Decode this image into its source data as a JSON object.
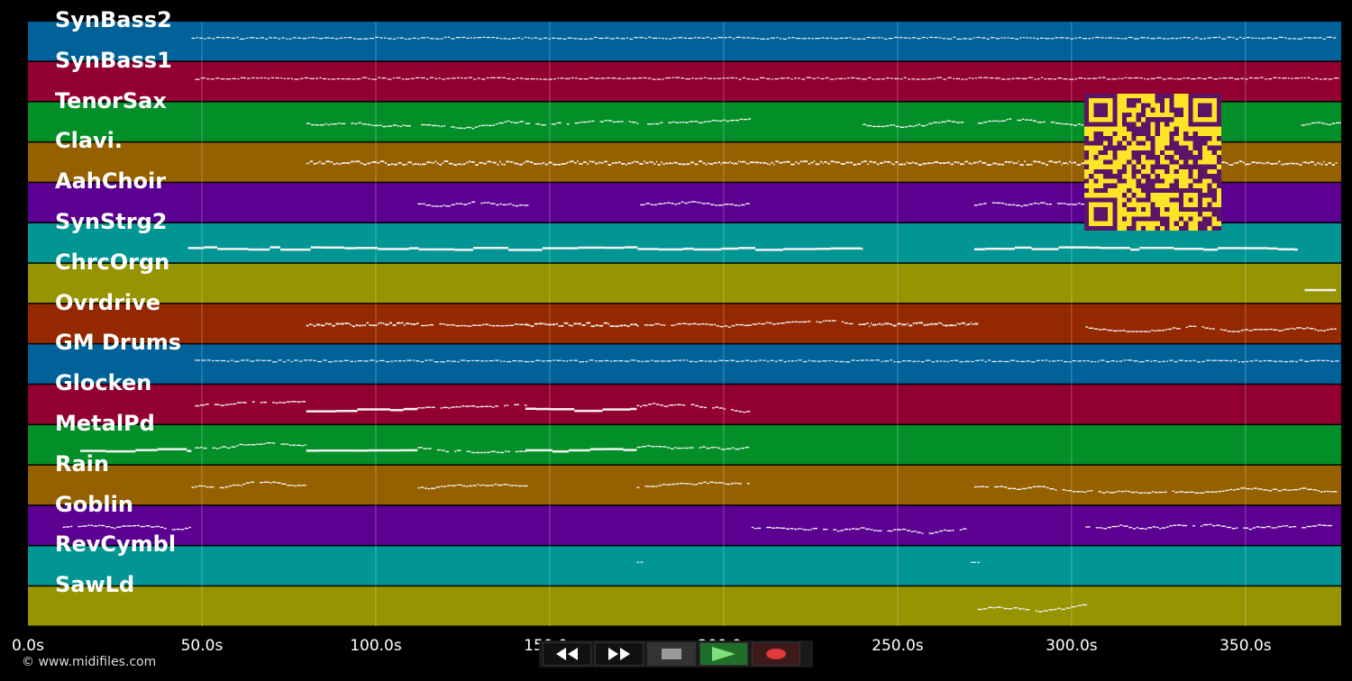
{
  "tracks": [
    {
      "name": "SynBass2",
      "color": "#01629a"
    },
    {
      "name": "SynBass1",
      "color": "#920032"
    },
    {
      "name": "TenorSax",
      "color": "#028f28"
    },
    {
      "name": "Clavi.",
      "color": "#946000"
    },
    {
      "name": "AahChoir",
      "color": "#5c0092"
    },
    {
      "name": "SynStrg2",
      "color": "#019693"
    },
    {
      "name": "ChrcOrgn",
      "color": "#969400"
    },
    {
      "name": "Ovrdrive",
      "color": "#942800"
    },
    {
      "name": "GM Drums",
      "color": "#01629a"
    },
    {
      "name": "Glocken",
      "color": "#920032"
    },
    {
      "name": "MetalPd",
      "color": "#028f28"
    },
    {
      "name": "Rain",
      "color": "#946000"
    },
    {
      "name": "Goblin",
      "color": "#5c0092"
    },
    {
      "name": "RevCymbl",
      "color": "#019693"
    },
    {
      "name": "SawLd",
      "color": "#969400"
    }
  ],
  "timeline": {
    "max_seconds": 377.5,
    "ticks": [
      {
        "value": 0,
        "label": "0.0s"
      },
      {
        "value": 50,
        "label": "50.0s"
      },
      {
        "value": 100,
        "label": "100.0s"
      },
      {
        "value": 150,
        "label": "150.0s"
      },
      {
        "value": 200,
        "label": "200.0s"
      },
      {
        "value": 250,
        "label": "250.0s"
      },
      {
        "value": 300,
        "label": "300.0s"
      },
      {
        "value": 350,
        "label": "350.0s"
      }
    ]
  },
  "notes": [
    {
      "track": 0,
      "segments": [
        [
          47,
          376,
          "dash"
        ]
      ]
    },
    {
      "track": 1,
      "segments": [
        [
          48,
          376,
          "dash"
        ]
      ]
    },
    {
      "track": 2,
      "segments": [
        [
          80,
          110,
          "wave"
        ],
        [
          113,
          142,
          "wave"
        ],
        [
          143,
          175,
          "wave"
        ],
        [
          178,
          207,
          "wave"
        ],
        [
          240,
          270,
          "wave"
        ],
        [
          273,
          303,
          "wave"
        ],
        [
          366,
          376,
          "wave"
        ]
      ]
    },
    {
      "track": 3,
      "segments": [
        [
          80,
          376,
          "dense"
        ]
      ]
    },
    {
      "track": 4,
      "segments": [
        [
          112,
          143,
          "wave"
        ],
        [
          176,
          207,
          "wave"
        ],
        [
          272,
          303,
          "wave"
        ]
      ]
    },
    {
      "track": 5,
      "segments": [
        [
          46,
          240,
          "bar"
        ],
        [
          272,
          365,
          "bar"
        ]
      ]
    },
    {
      "track": 6,
      "segments": [
        [
          367,
          376,
          "bar"
        ]
      ]
    },
    {
      "track": 7,
      "segments": [
        [
          80,
          112,
          "dense"
        ],
        [
          113,
          143,
          "wave"
        ],
        [
          143,
          175,
          "dense"
        ],
        [
          175,
          207,
          "wave"
        ],
        [
          207,
          240,
          "wave"
        ],
        [
          240,
          272,
          "dense"
        ],
        [
          304,
          376,
          "wave"
        ]
      ]
    },
    {
      "track": 8,
      "segments": [
        [
          48,
          376,
          "dash"
        ]
      ]
    },
    {
      "track": 9,
      "segments": [
        [
          48,
          80,
          "wave"
        ],
        [
          80,
          112,
          "bar"
        ],
        [
          112,
          143,
          "wave"
        ],
        [
          143,
          175,
          "bar"
        ],
        [
          175,
          207,
          "wave"
        ]
      ]
    },
    {
      "track": 10,
      "segments": [
        [
          15,
          47,
          "bar"
        ],
        [
          48,
          80,
          "wave"
        ],
        [
          80,
          112,
          "bar"
        ],
        [
          112,
          143,
          "wave"
        ],
        [
          143,
          175,
          "bar"
        ],
        [
          175,
          207,
          "wave"
        ]
      ]
    },
    {
      "track": 11,
      "segments": [
        [
          47,
          80,
          "wave"
        ],
        [
          112,
          143,
          "wave"
        ],
        [
          175,
          207,
          "wave"
        ],
        [
          272,
          376,
          "wave"
        ]
      ]
    },
    {
      "track": 12,
      "segments": [
        [
          10,
          47,
          "wave"
        ],
        [
          208,
          270,
          "wave"
        ],
        [
          304,
          375,
          "wave"
        ]
      ]
    },
    {
      "track": 13,
      "segments": [
        [
          175,
          177,
          "dash"
        ],
        [
          271,
          273,
          "dash"
        ]
      ]
    },
    {
      "track": 14,
      "segments": [
        [
          273,
          304,
          "wave"
        ]
      ]
    }
  ],
  "footer": {
    "copyright": "© www.midifiles.com"
  },
  "controls": [
    {
      "name": "rewind-button",
      "icon": "rewind-icon",
      "color": "#111111"
    },
    {
      "name": "fast-forward-button",
      "icon": "fast-forward-icon",
      "color": "#111111"
    },
    {
      "name": "stop-button",
      "icon": "stop-icon",
      "color": "#333333"
    },
    {
      "name": "play-button",
      "icon": "play-icon",
      "color": "#1f6e2a"
    },
    {
      "name": "record-button",
      "icon": "record-icon",
      "color": "#3d1a1a"
    }
  ],
  "qr_code": {
    "icon": "qr-code-icon",
    "fg": "#5c1466",
    "bg": "#fce526"
  }
}
